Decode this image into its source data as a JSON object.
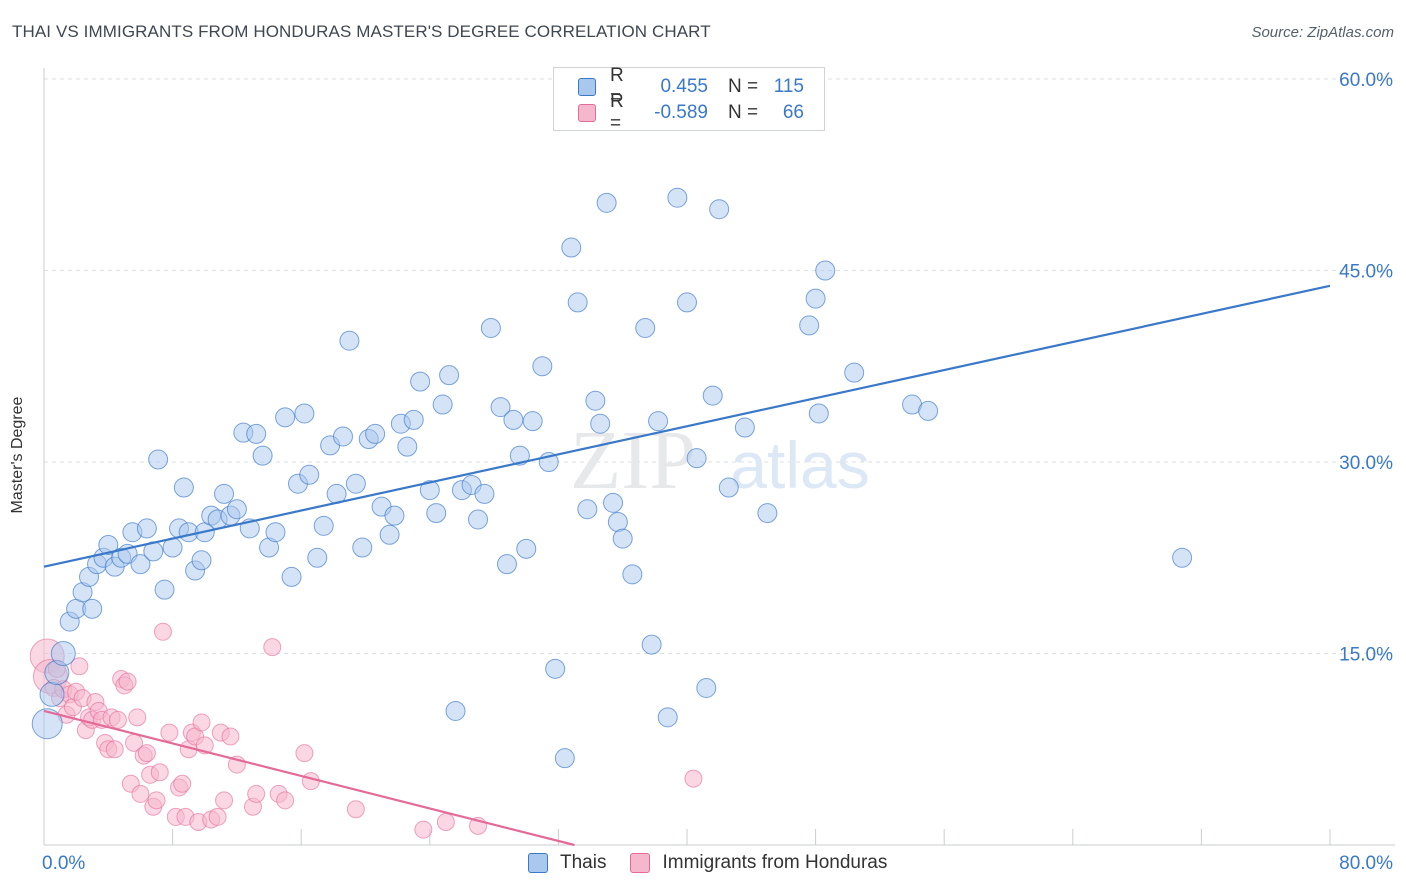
{
  "title": "THAI VS IMMIGRANTS FROM HONDURAS MASTER'S DEGREE CORRELATION CHART",
  "source": "Source: ZipAtlas.com",
  "watermark": {
    "zip": "ZIP",
    "atlas": "atlas"
  },
  "legend": {
    "series1": {
      "r_label": "R =",
      "r_value": "0.455",
      "n_label": "N =",
      "n_value": "115"
    },
    "series2": {
      "r_label": "R =",
      "r_value": "-0.589",
      "n_label": "N =",
      "n_value": "66"
    }
  },
  "colors": {
    "blue": "#3a78c9",
    "blue_fill": "#a9c8ee",
    "pink": "#e46a98",
    "pink_fill": "#f5b7cc",
    "grid": "#dcdfe3"
  },
  "chart_data": {
    "type": "scatter",
    "xlabel": "",
    "ylabel": "Master's Degree",
    "xlim": [
      0,
      80
    ],
    "ylim": [
      0,
      60
    ],
    "x_tick_labels": [
      "0.0%",
      "80.0%"
    ],
    "y_tick_labels": [
      "15.0%",
      "30.0%",
      "45.0%",
      "60.0%"
    ],
    "y_ticks": [
      15,
      30,
      45,
      60
    ],
    "series": [
      {
        "name": "Thais",
        "trend": {
          "x0": 0,
          "y0": 21.8,
          "x1": 80,
          "y1": 43.8
        },
        "points": [
          [
            0.2,
            9.5
          ],
          [
            0.5,
            11.8
          ],
          [
            0.8,
            13.5
          ],
          [
            1.2,
            15
          ],
          [
            1.6,
            17.5
          ],
          [
            2,
            18.5
          ],
          [
            2.4,
            19.8
          ],
          [
            2.8,
            21
          ],
          [
            3,
            18.5
          ],
          [
            3.3,
            22
          ],
          [
            3.7,
            22.5
          ],
          [
            4,
            23.5
          ],
          [
            4.4,
            21.8
          ],
          [
            4.8,
            22.5
          ],
          [
            5.2,
            22.8
          ],
          [
            5.5,
            24.5
          ],
          [
            6,
            22
          ],
          [
            6.4,
            24.8
          ],
          [
            6.8,
            23
          ],
          [
            7.1,
            30.2
          ],
          [
            7.5,
            20
          ],
          [
            8,
            23.3
          ],
          [
            8.4,
            24.8
          ],
          [
            8.7,
            28
          ],
          [
            9,
            24.5
          ],
          [
            9.4,
            21.5
          ],
          [
            9.8,
            22.3
          ],
          [
            10,
            24.5
          ],
          [
            10.4,
            25.8
          ],
          [
            10.8,
            25.5
          ],
          [
            11.2,
            27.5
          ],
          [
            11.6,
            25.8
          ],
          [
            12,
            26.3
          ],
          [
            12.4,
            32.3
          ],
          [
            12.8,
            24.8
          ],
          [
            13.2,
            32.2
          ],
          [
            13.6,
            30.5
          ],
          [
            14,
            23.3
          ],
          [
            14.4,
            24.5
          ],
          [
            15,
            33.5
          ],
          [
            15.4,
            21
          ],
          [
            15.8,
            28.3
          ],
          [
            16.2,
            33.8
          ],
          [
            16.5,
            29
          ],
          [
            17,
            22.5
          ],
          [
            17.4,
            25
          ],
          [
            17.8,
            31.3
          ],
          [
            18.2,
            27.5
          ],
          [
            18.6,
            32
          ],
          [
            19,
            39.5
          ],
          [
            19.4,
            28.3
          ],
          [
            19.8,
            23.3
          ],
          [
            20.2,
            31.8
          ],
          [
            20.6,
            32.2
          ],
          [
            21,
            26.5
          ],
          [
            21.5,
            24.3
          ],
          [
            21.8,
            25.8
          ],
          [
            22.2,
            33
          ],
          [
            22.6,
            31.2
          ],
          [
            23,
            33.3
          ],
          [
            23.4,
            36.3
          ],
          [
            24,
            27.8
          ],
          [
            24.4,
            26
          ],
          [
            24.8,
            34.5
          ],
          [
            25.2,
            36.8
          ],
          [
            25.6,
            10.5
          ],
          [
            26,
            27.8
          ],
          [
            26.6,
            28.2
          ],
          [
            27,
            25.5
          ],
          [
            27.4,
            27.5
          ],
          [
            27.8,
            40.5
          ],
          [
            28.4,
            34.3
          ],
          [
            28.8,
            22
          ],
          [
            29.2,
            33.3
          ],
          [
            29.6,
            30.5
          ],
          [
            30,
            23.2
          ],
          [
            30.4,
            33.2
          ],
          [
            31,
            37.5
          ],
          [
            31.4,
            30
          ],
          [
            31.8,
            13.8
          ],
          [
            32.4,
            6.8
          ],
          [
            32.8,
            46.8
          ],
          [
            33.2,
            42.5
          ],
          [
            33.8,
            26.3
          ],
          [
            34.3,
            34.8
          ],
          [
            34.6,
            33
          ],
          [
            35,
            50.3
          ],
          [
            35.4,
            26.8
          ],
          [
            35.7,
            25.3
          ],
          [
            36,
            24
          ],
          [
            36.6,
            21.2
          ],
          [
            37.4,
            40.5
          ],
          [
            37.8,
            15.7
          ],
          [
            38.2,
            33.2
          ],
          [
            38.8,
            10
          ],
          [
            39.4,
            50.7
          ],
          [
            40,
            42.5
          ],
          [
            40.6,
            30.3
          ],
          [
            41.2,
            12.3
          ],
          [
            41.6,
            35.2
          ],
          [
            42,
            49.8
          ],
          [
            42.6,
            28
          ],
          [
            43.6,
            32.7
          ],
          [
            45,
            26
          ],
          [
            47.6,
            40.7
          ],
          [
            48,
            42.8
          ],
          [
            48.2,
            33.8
          ],
          [
            48.6,
            45
          ],
          [
            50.4,
            37
          ],
          [
            54,
            34.5
          ],
          [
            55,
            34
          ],
          [
            70.8,
            22.5
          ]
        ]
      },
      {
        "name": "Immigrants from Honduras",
        "trend": {
          "x0": 0,
          "y0": 10.5,
          "x1": 33,
          "y1": 0
        },
        "points": [
          [
            0.2,
            14.8
          ],
          [
            0.4,
            13.2
          ],
          [
            0.6,
            12.3
          ],
          [
            0.8,
            13.8
          ],
          [
            1,
            11.5
          ],
          [
            1.2,
            12.2
          ],
          [
            1.4,
            10.2
          ],
          [
            1.6,
            11.8
          ],
          [
            1.8,
            10.8
          ],
          [
            2,
            12
          ],
          [
            2.2,
            14
          ],
          [
            2.4,
            11.5
          ],
          [
            2.6,
            9
          ],
          [
            2.8,
            10
          ],
          [
            3,
            9.8
          ],
          [
            3.2,
            11.2
          ],
          [
            3.4,
            10.5
          ],
          [
            3.6,
            9.8
          ],
          [
            3.8,
            8
          ],
          [
            4,
            7.5
          ],
          [
            4.2,
            10
          ],
          [
            4.4,
            7.5
          ],
          [
            4.6,
            9.8
          ],
          [
            4.8,
            13
          ],
          [
            5,
            12.5
          ],
          [
            5.2,
            12.8
          ],
          [
            5.4,
            4.8
          ],
          [
            5.6,
            8
          ],
          [
            5.8,
            10
          ],
          [
            6,
            4
          ],
          [
            6.2,
            7
          ],
          [
            6.4,
            7.2
          ],
          [
            6.6,
            5.5
          ],
          [
            6.8,
            3
          ],
          [
            7,
            3.5
          ],
          [
            7.2,
            5.7
          ],
          [
            7.4,
            16.7
          ],
          [
            7.8,
            8.8
          ],
          [
            8.2,
            2.2
          ],
          [
            8.4,
            4.5
          ],
          [
            8.6,
            4.8
          ],
          [
            8.8,
            2.2
          ],
          [
            9,
            7.5
          ],
          [
            9.2,
            8.8
          ],
          [
            9.4,
            8.5
          ],
          [
            9.6,
            1.8
          ],
          [
            9.8,
            9.6
          ],
          [
            10,
            7.8
          ],
          [
            10.4,
            2
          ],
          [
            10.8,
            2.2
          ],
          [
            11,
            8.8
          ],
          [
            11.2,
            3.5
          ],
          [
            11.6,
            8.5
          ],
          [
            12,
            6.3
          ],
          [
            13,
            3
          ],
          [
            13.2,
            4
          ],
          [
            14.2,
            15.5
          ],
          [
            14.6,
            4
          ],
          [
            15,
            3.5
          ],
          [
            16.2,
            7.2
          ],
          [
            16.6,
            5
          ],
          [
            19.4,
            2.8
          ],
          [
            23.6,
            1.2
          ],
          [
            25,
            1.8
          ],
          [
            27,
            1.5
          ],
          [
            40.4,
            5.2
          ]
        ]
      }
    ]
  },
  "bottom_legend": {
    "series1": "Thais",
    "series2": "Immigrants from Honduras"
  }
}
